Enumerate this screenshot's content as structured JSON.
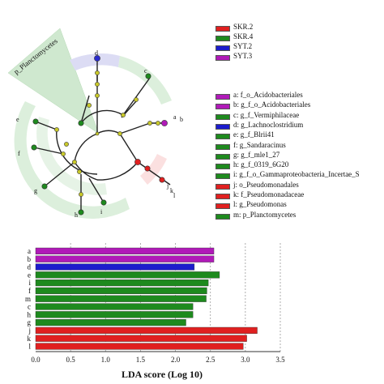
{
  "group_legend": [
    {
      "name": "SKR.2",
      "color": "#e02020"
    },
    {
      "name": "SKR.4",
      "color": "#1e8a1e"
    },
    {
      "name": "SYT.2",
      "color": "#1c1ccc"
    },
    {
      "name": "SYT.3",
      "color": "#b01ab8"
    }
  ],
  "taxa_legend": [
    {
      "key": "a",
      "text": "a: f_o_Acidobacteriales",
      "color": "#b01ab8"
    },
    {
      "key": "b",
      "text": "b: g_f_o_Acidobacteriales",
      "color": "#b01ab8"
    },
    {
      "key": "c",
      "text": "c: g_f_Vermiphilaceae",
      "color": "#1e8a1e"
    },
    {
      "key": "d",
      "text": "d: g_Lachnoclostridium",
      "color": "#1c1ccc"
    },
    {
      "key": "e",
      "text": "e: g_f_Blrii41",
      "color": "#1e8a1e"
    },
    {
      "key": "f",
      "text": "f: g_Sandaracinus",
      "color": "#1e8a1e"
    },
    {
      "key": "g",
      "text": "g: g_f_mle1_27",
      "color": "#1e8a1e"
    },
    {
      "key": "h",
      "text": "h: g_f_0319_6G20",
      "color": "#1e8a1e"
    },
    {
      "key": "i",
      "text": "i: g_f_o_Gammaproteobacteria_Incertae_S",
      "color": "#1e8a1e"
    },
    {
      "key": "j",
      "text": "j: o_Pseudomonadales",
      "color": "#e02020"
    },
    {
      "key": "k",
      "text": "k: f_Pseudomonadaceae",
      "color": "#e02020"
    },
    {
      "key": "l",
      "text": "l: g_Pseudomonas",
      "color": "#e02020"
    },
    {
      "key": "m",
      "text": "m: p_Planctomycetes",
      "color": "#1e8a1e"
    }
  ],
  "cladogram": {
    "clade_label": "p_Planctomycetes",
    "node_letters": [
      "a",
      "b",
      "c",
      "d",
      "e",
      "f",
      "g",
      "h",
      "i",
      "j",
      "k",
      "l"
    ]
  },
  "chart_data": {
    "type": "bar",
    "orientation": "horizontal",
    "categories": [
      "a",
      "b",
      "d",
      "e",
      "i",
      "f",
      "m",
      "c",
      "h",
      "g",
      "j",
      "k",
      "l"
    ],
    "values": [
      2.55,
      2.55,
      2.27,
      2.63,
      2.47,
      2.45,
      2.44,
      2.25,
      2.25,
      2.15,
      3.17,
      3.02,
      2.97
    ],
    "bar_colors": [
      "#b01ab8",
      "#b01ab8",
      "#1c1ccc",
      "#1e8a1e",
      "#1e8a1e",
      "#1e8a1e",
      "#1e8a1e",
      "#1e8a1e",
      "#1e8a1e",
      "#1e8a1e",
      "#e02020",
      "#e02020",
      "#e02020"
    ],
    "xlabel": "LDA score (Log 10)",
    "xlim": [
      0,
      3.5
    ],
    "xticks": [
      "0.0",
      "0.5",
      "1.0",
      "1.5",
      "2.0",
      "2.5",
      "3.0",
      "3.5"
    ],
    "grid": "vertical dashed"
  }
}
